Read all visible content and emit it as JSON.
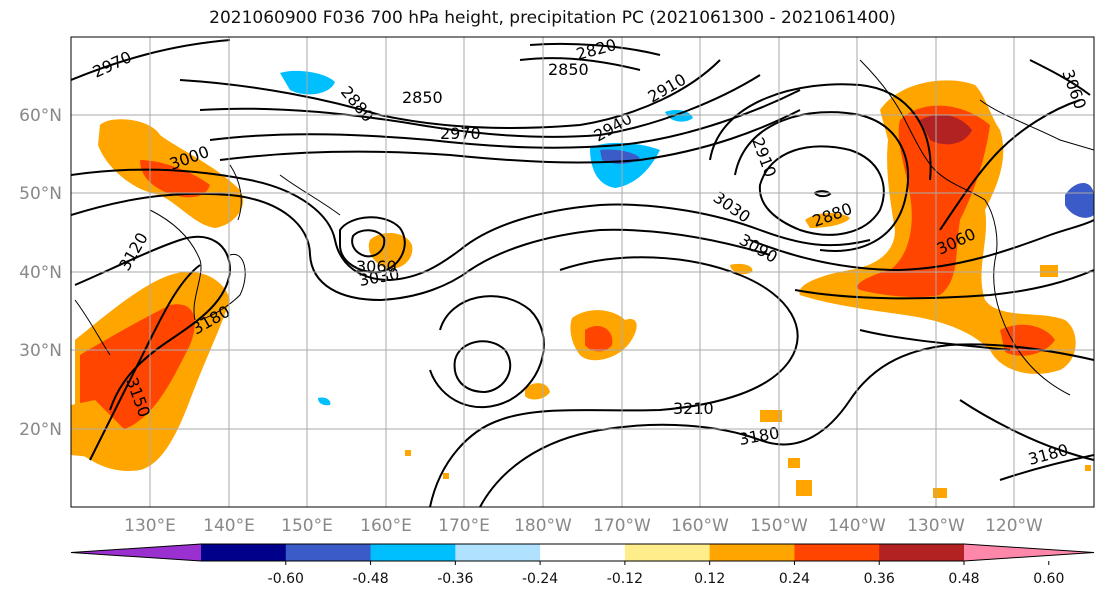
{
  "title": "2021060900 F036 700 hPa height, precipitation PC (2021061300 - 2021061400)",
  "lat_labels": [
    "60°N",
    "50°N",
    "40°N",
    "30°N",
    "20°N"
  ],
  "lon_labels": [
    "130°E",
    "140°E",
    "150°E",
    "160°E",
    "170°E",
    "180°W",
    "170°W",
    "160°W",
    "150°W",
    "140°W",
    "130°W",
    "120°W"
  ],
  "colorbar": {
    "colors": [
      "#9b30d0",
      "#00008b",
      "#3a5bc8",
      "#00bfff",
      "#b0e2ff",
      "#ffffff",
      "#ffec8b",
      "#ffa500",
      "#ff4500",
      "#b22222",
      "#ff88aa"
    ],
    "tick_labels": [
      "-0.60",
      "-0.48",
      "-0.36",
      "-0.24",
      "-0.12",
      "0.12",
      "0.24",
      "0.36",
      "0.48",
      "0.60"
    ]
  },
  "contour_labels": [
    "2970",
    "3000",
    "3120",
    "3180",
    "3150",
    "2880",
    "2850",
    "2970",
    "2820",
    "2850",
    "2910",
    "2940",
    "2910",
    "3030",
    "3060",
    "3030",
    "3090",
    "2880",
    "3060",
    "3210",
    "3180",
    "3180",
    "3060"
  ]
}
